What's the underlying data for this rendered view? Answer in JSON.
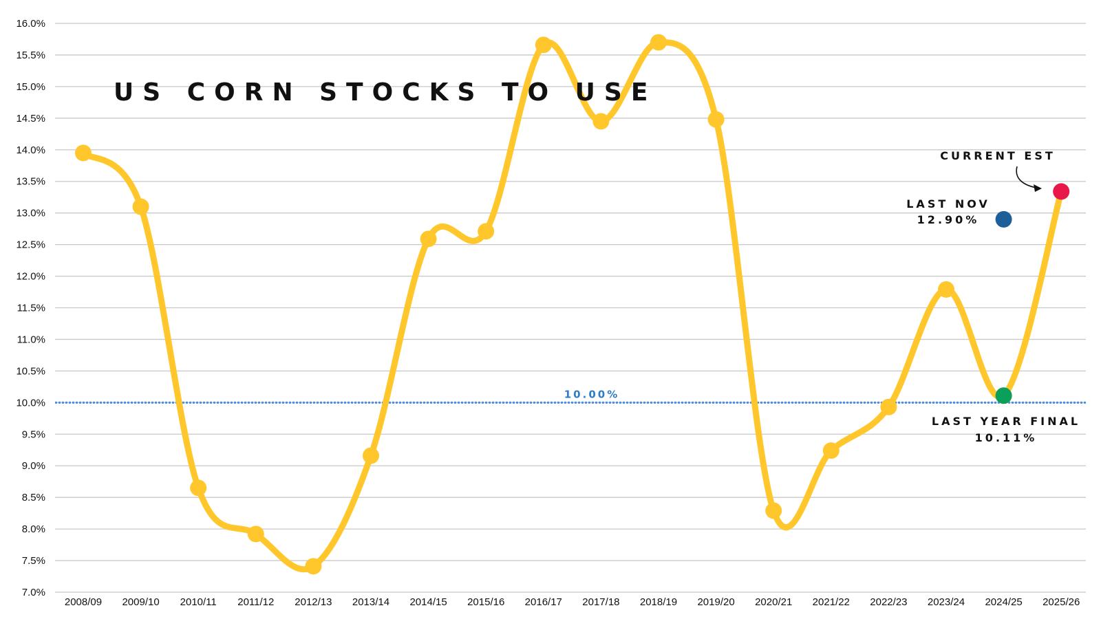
{
  "chart_data": {
    "type": "line",
    "title": "US CORN STOCKS TO USE",
    "categories": [
      "2008/09",
      "2009/10",
      "2010/11",
      "2011/12",
      "2012/13",
      "2013/14",
      "2014/15",
      "2015/16",
      "2016/17",
      "2017/18",
      "2018/19",
      "2019/20",
      "2020/21",
      "2021/22",
      "2022/23",
      "2023/24",
      "2024/25",
      "2025/26"
    ],
    "series": [
      {
        "values": [
          13.95,
          13.1,
          8.65,
          7.92,
          7.41,
          9.16,
          12.59,
          12.71,
          15.66,
          14.45,
          15.7,
          14.48,
          8.29,
          9.24,
          9.93,
          11.79,
          10.11,
          13.34
        ]
      }
    ],
    "ylim": [
      7.0,
      16.0
    ],
    "yticks": [
      "7.0%",
      "7.5%",
      "8.0%",
      "8.5%",
      "9.0%",
      "9.5%",
      "10.0%",
      "10.5%",
      "11.0%",
      "11.5%",
      "12.0%",
      "12.5%",
      "13.0%",
      "13.5%",
      "14.0%",
      "14.5%",
      "15.0%",
      "15.5%",
      "16.0%"
    ],
    "grid": true,
    "reference_line": {
      "value": 10.0,
      "label": "10.00%"
    },
    "highlights": [
      {
        "category": "2025/26",
        "value": 13.34,
        "label": "CURRENT EST",
        "color": "#e8184a"
      },
      {
        "category": "2024/25",
        "value": 12.9,
        "label": "LAST NOV",
        "value_label": "12.90%",
        "color": "#1f5f99"
      },
      {
        "category": "2024/25",
        "value": 10.11,
        "label": "LAST YEAR FINAL",
        "value_label": "10.11%",
        "color": "#0aa05a"
      }
    ],
    "colors": {
      "line": "#ffc72c",
      "grid": "#c8c8c8",
      "reference": "#4a90e2",
      "reference_label": "#2f7cc7"
    }
  }
}
